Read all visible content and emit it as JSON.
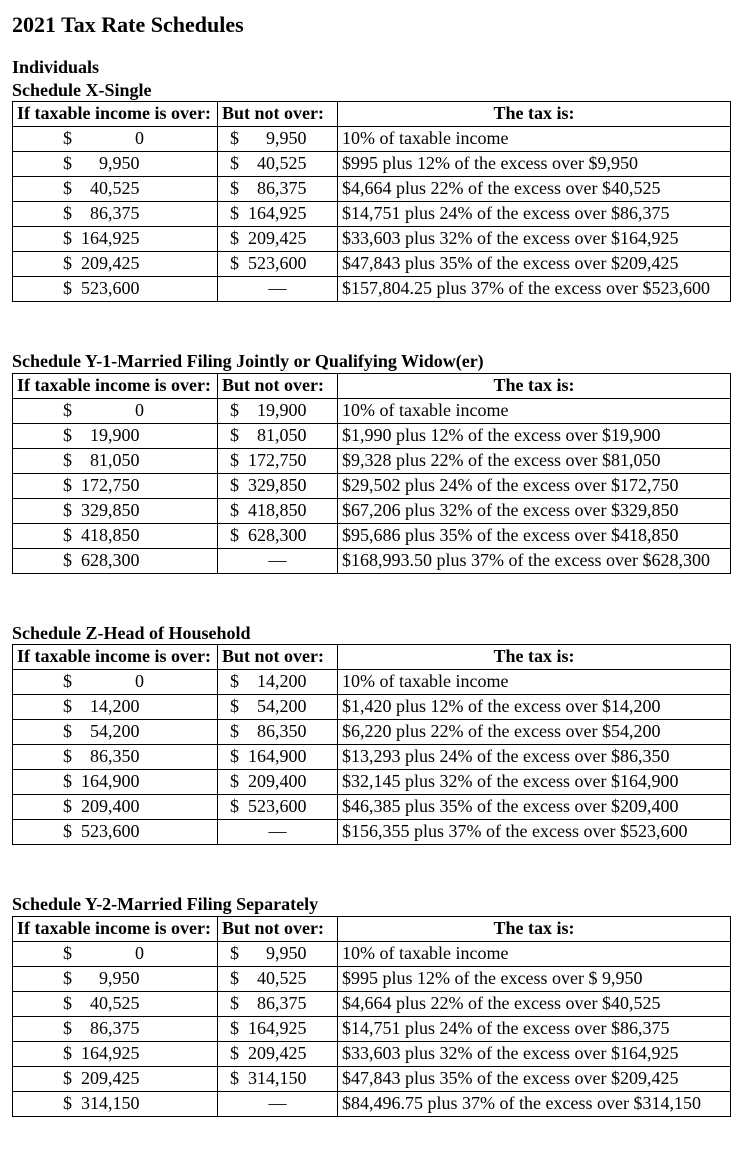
{
  "page_title": "2021 Tax Rate Schedules",
  "individuals_label": "Individuals",
  "columns": {
    "over": "If taxable income is over:",
    "not_over": "But not over:",
    "tax_is": "The tax is:"
  },
  "schedules": [
    {
      "title": "Schedule X-Single",
      "rows": [
        {
          "over": "$       0",
          "not_over": "$   9,950",
          "tax": "10% of taxable income"
        },
        {
          "over": "$   9,950",
          "not_over": "$  40,525",
          "tax": "$995 plus 12% of the excess over $9,950"
        },
        {
          "over": "$  40,525",
          "not_over": "$  86,375",
          "tax": "$4,664 plus 22% of the excess over $40,525"
        },
        {
          "over": "$  86,375",
          "not_over": "$ 164,925",
          "tax": "$14,751 plus 24% of the excess over $86,375"
        },
        {
          "over": "$ 164,925",
          "not_over": "$ 209,425",
          "tax": "$33,603 plus 32% of the excess over $164,925"
        },
        {
          "over": "$ 209,425",
          "not_over": "$ 523,600",
          "tax": "$47,843 plus 35% of the excess over $209,425"
        },
        {
          "over": "$ 523,600",
          "not_over": "—",
          "tax": "$157,804.25 plus 37% of the excess over $523,600"
        }
      ]
    },
    {
      "title": "Schedule Y-1-Married Filing Jointly or Qualifying Widow(er)",
      "rows": [
        {
          "over": "$       0",
          "not_over": "$  19,900",
          "tax": "10% of taxable income"
        },
        {
          "over": "$  19,900",
          "not_over": "$  81,050",
          "tax": "$1,990 plus 12% of the excess over $19,900"
        },
        {
          "over": "$  81,050",
          "not_over": "$ 172,750",
          "tax": "$9,328 plus 22% of the excess over $81,050"
        },
        {
          "over": "$ 172,750",
          "not_over": "$ 329,850",
          "tax": "$29,502 plus 24% of the excess over $172,750"
        },
        {
          "over": "$ 329,850",
          "not_over": "$ 418,850",
          "tax": "$67,206 plus 32% of the excess over $329,850"
        },
        {
          "over": "$ 418,850",
          "not_over": "$ 628,300",
          "tax": "$95,686 plus 35% of the excess over $418,850"
        },
        {
          "over": "$ 628,300",
          "not_over": "—",
          "tax": "$168,993.50 plus 37% of the excess over $628,300"
        }
      ]
    },
    {
      "title": "Schedule Z-Head of Household",
      "rows": [
        {
          "over": "$       0",
          "not_over": "$  14,200",
          "tax": "10% of taxable income"
        },
        {
          "over": "$  14,200",
          "not_over": "$  54,200",
          "tax": "$1,420 plus 12% of the excess over $14,200"
        },
        {
          "over": "$  54,200",
          "not_over": "$  86,350",
          "tax": "$6,220 plus 22% of the excess over $54,200"
        },
        {
          "over": "$  86,350",
          "not_over": "$ 164,900",
          "tax": "$13,293 plus 24% of the excess over $86,350"
        },
        {
          "over": "$ 164,900",
          "not_over": "$ 209,400",
          "tax": "$32,145 plus 32% of the excess over $164,900"
        },
        {
          "over": "$ 209,400",
          "not_over": "$ 523,600",
          "tax": "$46,385 plus 35% of the excess over $209,400"
        },
        {
          "over": "$ 523,600",
          "not_over": "—",
          "tax": "$156,355 plus 37% of the excess over $523,600"
        }
      ]
    },
    {
      "title": "Schedule Y-2-Married Filing Separately",
      "rows": [
        {
          "over": "$       0",
          "not_over": "$   9,950",
          "tax": "10% of taxable income"
        },
        {
          "over": "$   9,950",
          "not_over": "$  40,525",
          "tax": "$995 plus 12% of the excess over $ 9,950"
        },
        {
          "over": "$  40,525",
          "not_over": "$  86,375",
          "tax": "$4,664 plus 22% of the excess over $40,525"
        },
        {
          "over": "$  86,375",
          "not_over": "$ 164,925",
          "tax": "$14,751 plus 24% of the excess over $86,375"
        },
        {
          "over": "$ 164,925",
          "not_over": "$ 209,425",
          "tax": "$33,603 plus 32% of the excess over $164,925"
        },
        {
          "over": "$ 209,425",
          "not_over": "$ 314,150",
          "tax": "$47,843 plus 35% of the excess over $209,425"
        },
        {
          "over": "$ 314,150",
          "not_over": "—",
          "tax": "$84,496.75 plus 37% of the excess over $314,150"
        }
      ]
    }
  ]
}
